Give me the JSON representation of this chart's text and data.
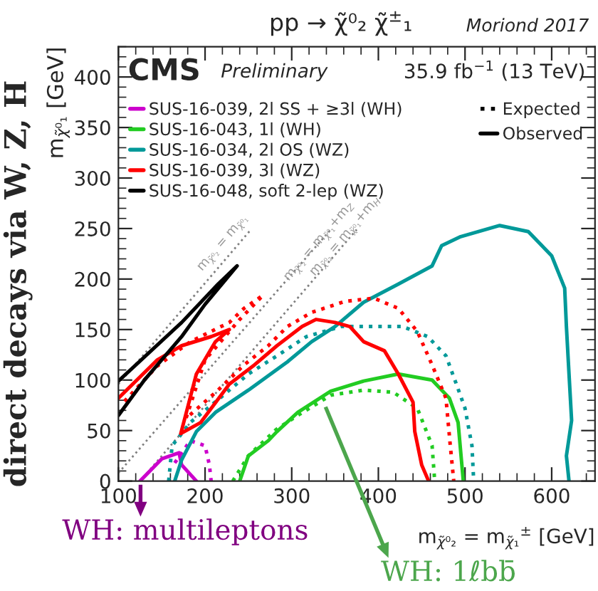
{
  "chart_data": {
    "type": "line",
    "title": "pp → χ̃⁰₂ χ̃$^{±}$₁",
    "xlabel": "m$_{χ̃⁰₂}$ = m$_{χ̃₁}$$^{±}$ [GeV]",
    "ylabel": "m$_{χ̃⁰₁}$ [GeV]",
    "annotations": [
      "Moriond 2017",
      "CMS",
      "Preliminary",
      "35.9 fb$^{−1}$ (13 TeV)",
      "direct decays via W, Z, H",
      "Expected",
      "Observed",
      {
        "text": "m$_{χ̃⁰₂}$ = m$_{χ̃⁰₁}$",
        "x": 200,
        "y": 205
      },
      {
        "text": "m$_{χ̃⁰₂}$ = m$_{χ̃⁰₁}$+m$_{Z}$",
        "x": 300,
        "y": 195
      },
      {
        "text": "m$_{χ̃⁰₂}$ = m$_{χ̃⁰₁}$+m$_{H}$",
        "x": 330,
        "y": 200
      },
      "WH: multileptons",
      "WH: 1ℓbb̄"
    ],
    "xlim": [
      100,
      650
    ],
    "ylim": [
      0,
      430
    ],
    "xticks": [
      100,
      200,
      300,
      400,
      500,
      600
    ],
    "yticks": [
      0,
      50,
      100,
      150,
      200,
      250,
      300,
      350,
      400
    ],
    "grid": false,
    "legend": "top left",
    "series": [
      {
        "color": "#808080",
        "line_style": "dotted",
        "x": [
          100,
          253
        ],
        "values": [
          96,
          249
        ]
      },
      {
        "color": "#808080",
        "line_style": "dotted",
        "x": [
          100,
          345
        ],
        "values": [
          8,
          249
        ]
      },
      {
        "color": "#808080",
        "line_style": "dotted",
        "x": [
          125,
          375
        ],
        "values": [
          0,
          249
        ]
      },
      {
        "name": "SUS-16-039, 2l SS + ≥3l (WH)",
        "color": "#cc00cc",
        "line_style": "solid",
        "x": [
          125,
          150,
          170,
          173,
          190
        ],
        "values": [
          0,
          22,
          28,
          16,
          0
        ]
      },
      {
        "color": "#cc00cc",
        "line_style": "dotted",
        "x": [
          165,
          183,
          200,
          205,
          207
        ],
        "values": [
          18,
          40,
          35,
          16,
          0
        ]
      },
      {
        "name": "SUS-16-043, 1l (WH)",
        "color": "#22cc22",
        "line_style": "solid",
        "x": [
          240,
          250,
          273,
          283,
          307,
          345,
          383,
          423,
          462,
          482,
          492,
          498
        ],
        "values": [
          0,
          25,
          40,
          49,
          68,
          89,
          99,
          106,
          100,
          82,
          58,
          0
        ]
      },
      {
        "color": "#22cc22",
        "line_style": "dotted",
        "x": [
          232,
          250,
          282,
          307,
          345,
          383,
          417,
          445,
          462,
          465
        ],
        "values": [
          0,
          25,
          51,
          65,
          85,
          90,
          88,
          72,
          35,
          0
        ]
      },
      {
        "name": "SUS-16-034, 2l OS (WZ)",
        "color": "#009999",
        "line_style": "solid",
        "x": [
          165,
          173,
          190,
          212,
          250,
          295,
          323,
          350,
          383,
          423,
          462,
          473,
          495,
          540,
          573,
          600,
          615,
          617,
          620,
          623,
          617,
          620
        ],
        "values": [
          0,
          21,
          49,
          68,
          90,
          118,
          138,
          153,
          177,
          195,
          213,
          233,
          242,
          253,
          247,
          223,
          191,
          153,
          106,
          60,
          25,
          0
        ]
      },
      {
        "color": "#009999",
        "line_style": "dotted",
        "x": [
          158,
          162,
          183,
          217,
          250,
          283,
          317,
          357,
          395,
          428,
          457,
          478,
          490,
          500,
          508,
          510
        ],
        "values": [
          0,
          35,
          58,
          82,
          106,
          124,
          143,
          153,
          153,
          153,
          143,
          124,
          96,
          72,
          35,
          0
        ]
      },
      {
        "name": "SUS-16-039, 3l (WZ)",
        "color": "#ff0000",
        "line_style": "solid",
        "x": [
          100,
          145,
          173,
          207,
          228,
          212,
          190,
          172,
          195,
          228,
          257,
          283,
          312,
          328,
          350,
          367,
          383,
          407,
          423,
          440,
          442,
          450,
          458
        ],
        "values": [
          82,
          120,
          134,
          143,
          150,
          138,
          106,
          47,
          58,
          96,
          115,
          134,
          153,
          160,
          157,
          153,
          138,
          129,
          106,
          78,
          49,
          16,
          0
        ]
      },
      {
        "color": "#ff0000",
        "line_style": "dotted",
        "x": [
          107,
          145,
          183,
          228,
          245,
          267,
          240,
          200,
          178,
          215,
          245,
          273,
          295,
          323,
          362,
          395,
          423,
          445,
          462,
          478,
          483,
          487
        ],
        "values": [
          79,
          114,
          138,
          157,
          171,
          184,
          160,
          120,
          62,
          90,
          115,
          134,
          153,
          167,
          178,
          181,
          171,
          148,
          115,
          82,
          35,
          0
        ]
      },
      {
        "name": "SUS-16-048, soft 2-lep (WZ)",
        "color": "#000000",
        "line_style": "solid",
        "x": [
          100,
          173,
          215,
          237,
          200,
          173,
          130,
          100
        ],
        "values": [
          99,
          157,
          195,
          213,
          175,
          143,
          100,
          65
        ]
      }
    ]
  }
}
